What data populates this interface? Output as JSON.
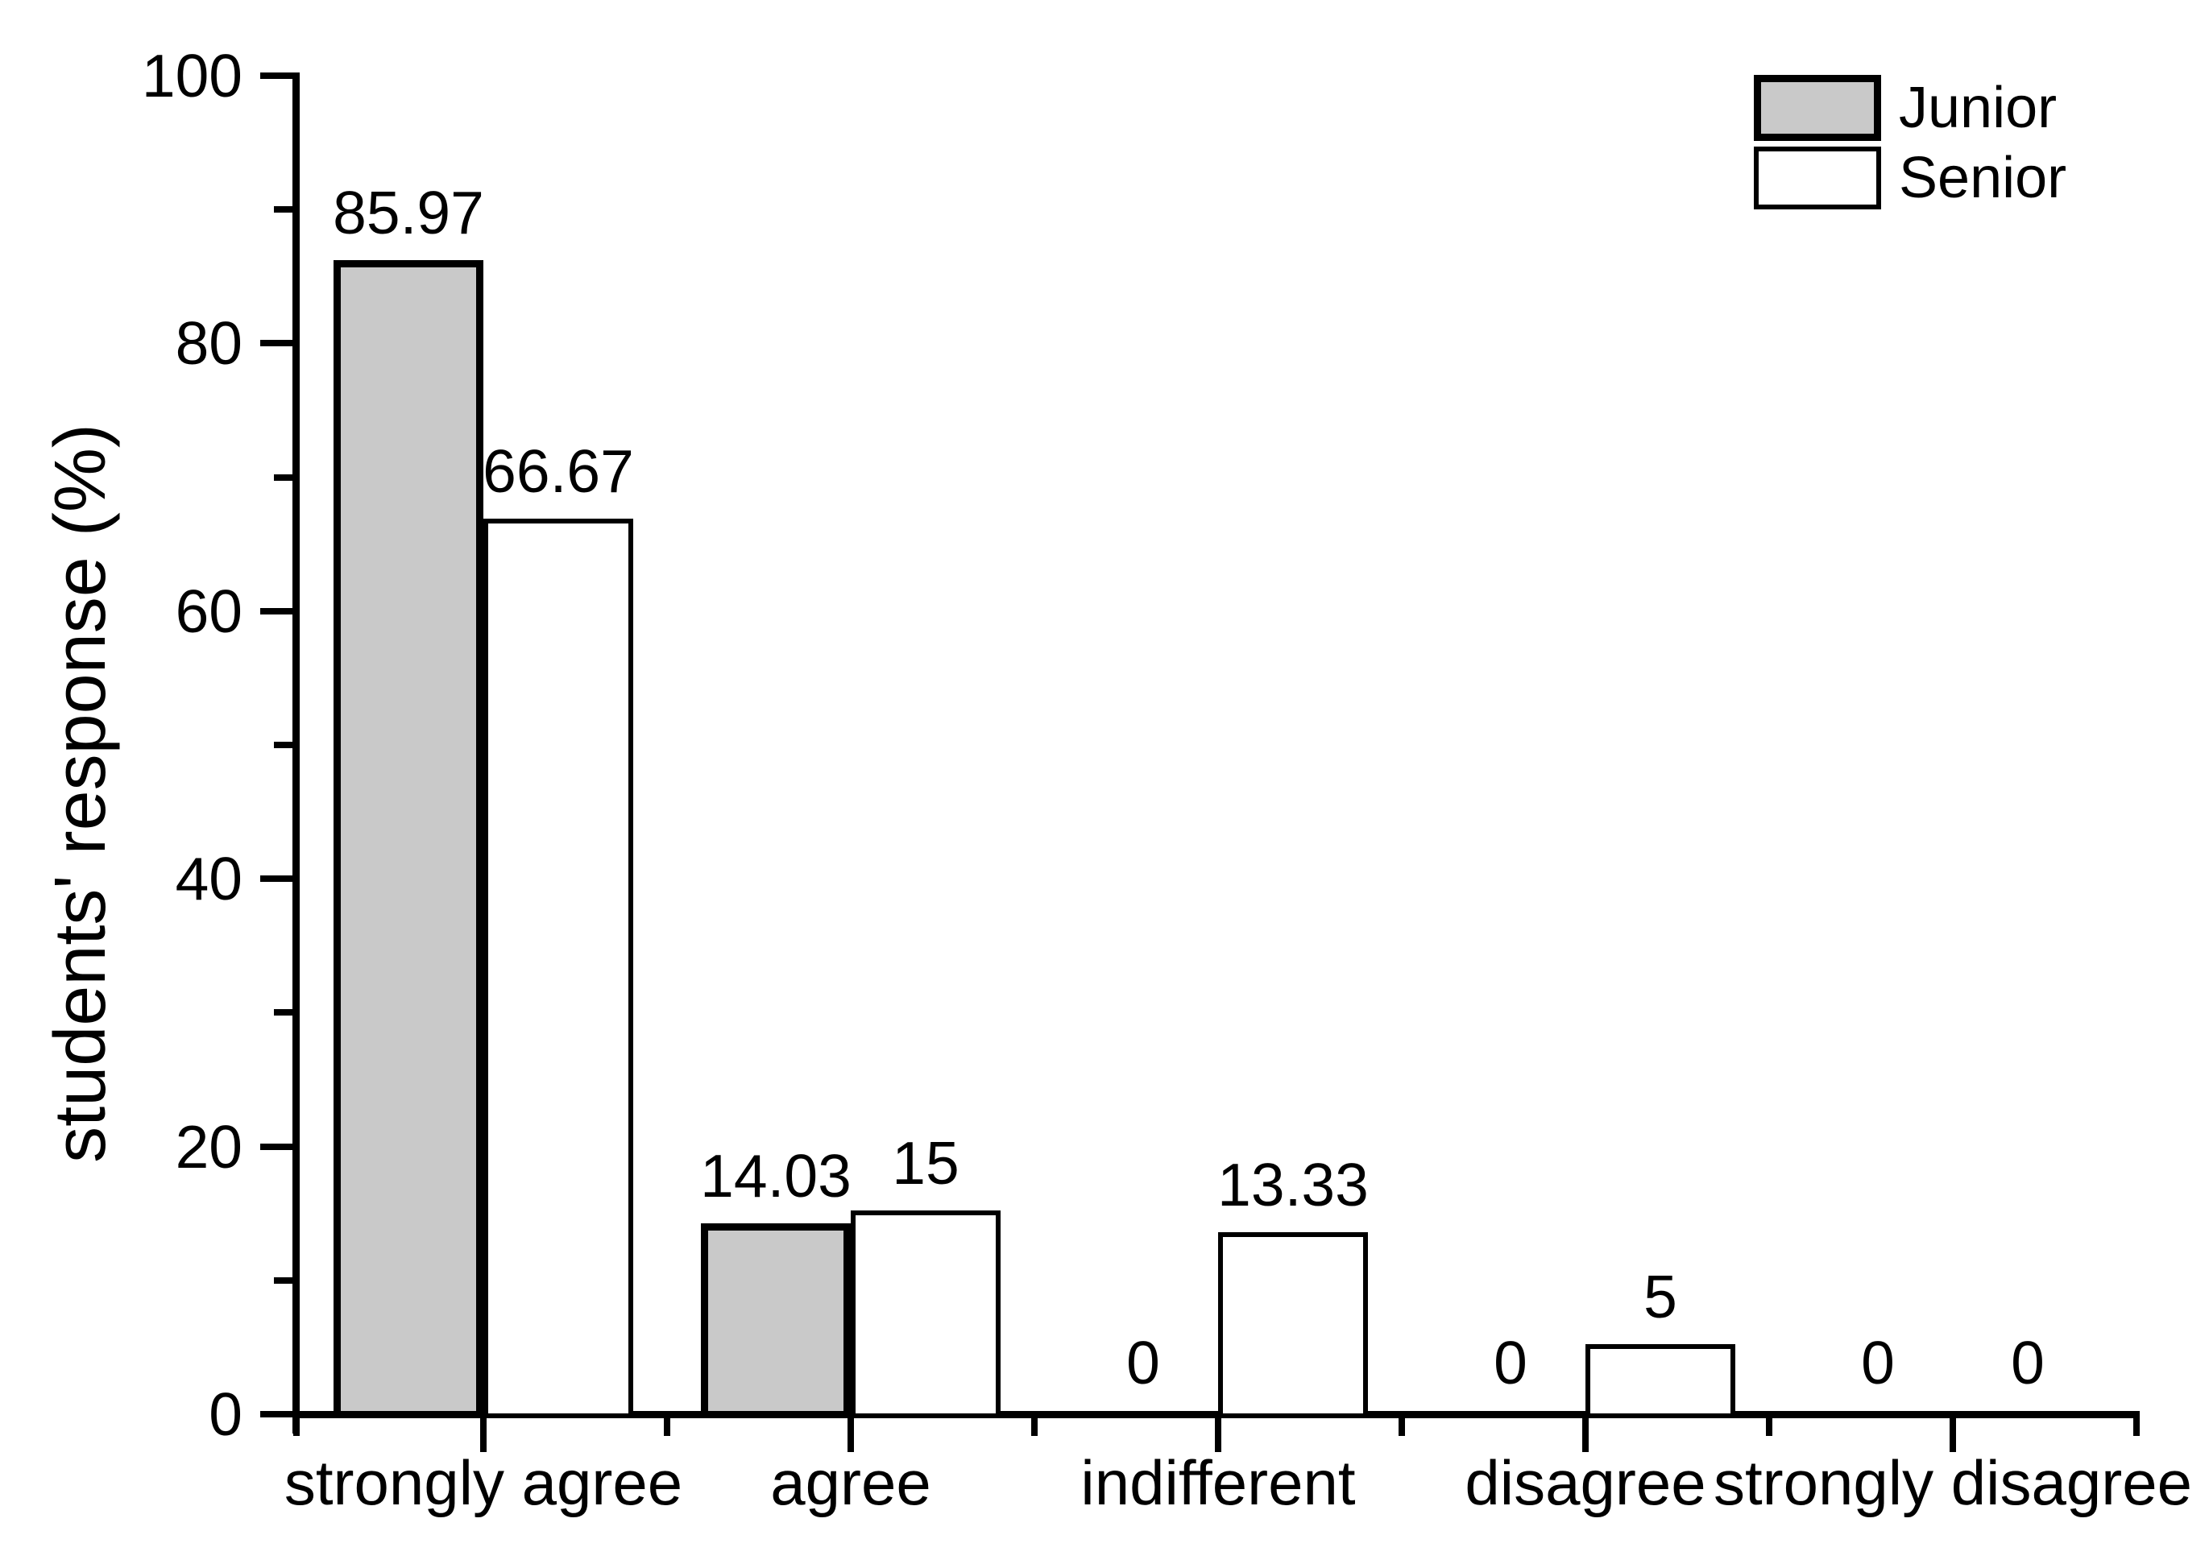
{
  "figure": {
    "background": "#ffffff",
    "text_color": "#000000",
    "axis_color": "#000000"
  },
  "chart_data": {
    "type": "bar",
    "title": "",
    "xlabel": "",
    "ylabel": "students' response (%)",
    "categories": [
      "strongly agree",
      "agree",
      "indifferent",
      "disagree",
      "strongly disagree"
    ],
    "series": [
      {
        "name": "Junior",
        "fill": "#c9c9c9",
        "stroke": "#000000",
        "stroke_width": 9,
        "values": [
          85.97,
          14.03,
          0,
          0,
          0
        ],
        "value_labels": [
          "85.97",
          "14.03",
          "0",
          "0",
          "0"
        ]
      },
      {
        "name": "Senior",
        "fill": "#ffffff",
        "stroke": "#000000",
        "stroke_width": 6,
        "values": [
          66.67,
          15,
          13.33,
          5,
          0
        ],
        "value_labels": [
          "66.67",
          "15",
          "13.33",
          "5",
          "0"
        ]
      }
    ],
    "ylim": [
      0,
      100
    ],
    "yticks": [
      0,
      20,
      40,
      60,
      80,
      100
    ],
    "yticks_minor": [
      10,
      30,
      50,
      70,
      90
    ],
    "grid": false,
    "legend_position": "top-right",
    "bar_value_labels_shown": true
  }
}
